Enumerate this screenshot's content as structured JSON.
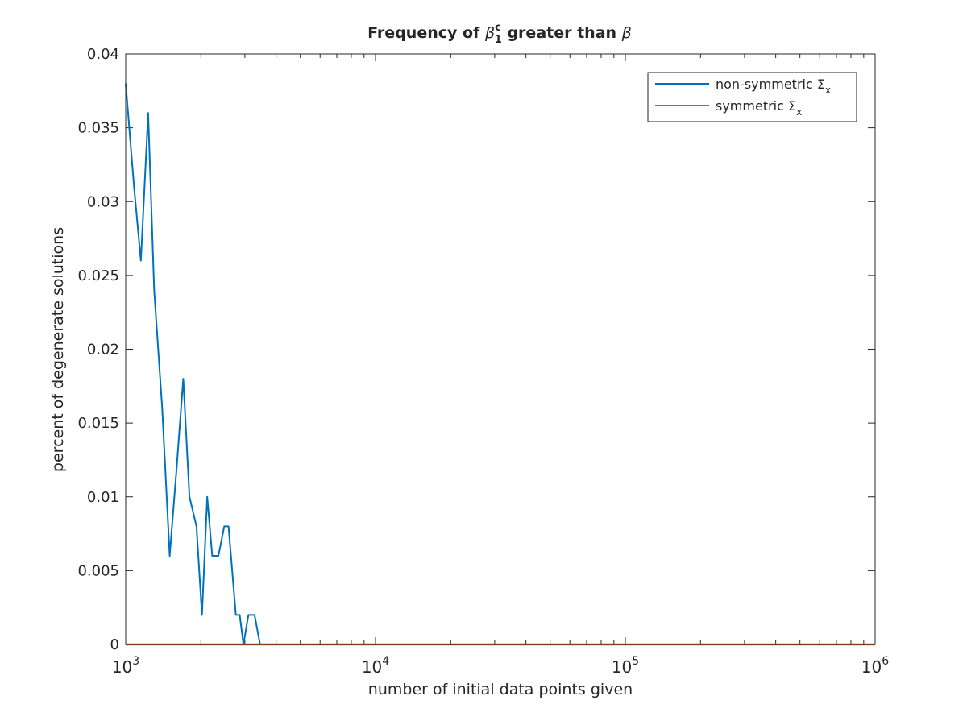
{
  "chart_data": {
    "type": "line",
    "title": "Frequency of β₁ᶜ greater than β",
    "title_parts": {
      "prefix": "Frequency of ",
      "symbol": "β",
      "superscript": "c",
      "subscript": "1",
      "middle": " greater than ",
      "suffix_symbol": "β"
    },
    "xlabel": "number of initial data points given",
    "ylabel": "percent of degenerate solutions",
    "xscale": "log",
    "xlim": [
      1000,
      1000000
    ],
    "ylim": [
      0,
      0.04
    ],
    "x_ticks": [
      {
        "value": 1000,
        "base": "10",
        "exp": "3"
      },
      {
        "value": 10000,
        "base": "10",
        "exp": "4"
      },
      {
        "value": 100000,
        "base": "10",
        "exp": "5"
      },
      {
        "value": 1000000,
        "base": "10",
        "exp": "6"
      }
    ],
    "y_ticks": [
      {
        "value": 0,
        "label": "0"
      },
      {
        "value": 0.005,
        "label": "0.005"
      },
      {
        "value": 0.01,
        "label": "0.01"
      },
      {
        "value": 0.015,
        "label": "0.015"
      },
      {
        "value": 0.02,
        "label": "0.02"
      },
      {
        "value": 0.025,
        "label": "0.025"
      },
      {
        "value": 0.03,
        "label": "0.03"
      },
      {
        "value": 0.035,
        "label": "0.035"
      },
      {
        "value": 0.04,
        "label": "0.04"
      }
    ],
    "grid": false,
    "legend_position": "top-right",
    "series": [
      {
        "name": "non-symmetric Σx",
        "legend_label": "non-symmetric Σ",
        "legend_sub": "x",
        "color": "#0072BD",
        "x": [
          1000,
          1080,
          1150,
          1230,
          1300,
          1400,
          1500,
          1600,
          1700,
          1800,
          1920,
          2020,
          2120,
          2220,
          2350,
          2480,
          2580,
          2760,
          2860,
          2960,
          3100,
          3280,
          3450,
          3700,
          4000,
          5000,
          10000,
          100000,
          1000000
        ],
        "values": [
          0.038,
          0.031,
          0.026,
          0.036,
          0.024,
          0.016,
          0.006,
          0.012,
          0.018,
          0.01,
          0.008,
          0.002,
          0.01,
          0.006,
          0.006,
          0.008,
          0.008,
          0.002,
          0.002,
          0.0,
          0.002,
          0.002,
          0.0,
          0.0,
          0.0,
          0.0,
          0.0,
          0.0,
          0.0
        ]
      },
      {
        "name": "symmetric Σx",
        "legend_label": "symmetric Σ",
        "legend_sub": "x",
        "color": "#D95319",
        "x": [
          1000,
          1000000
        ],
        "values": [
          0.0,
          0.0
        ]
      }
    ]
  }
}
